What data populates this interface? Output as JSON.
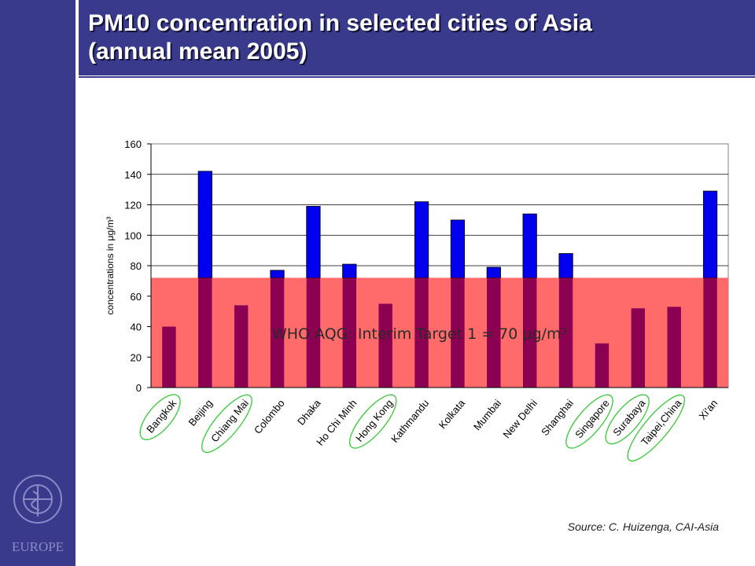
{
  "slide": {
    "title_line1": "PM10 concentration in selected cities of Asia",
    "title_line2": "(annual mean 2005)",
    "source": "Source: C. Huizenga, CAI-Asia",
    "brand": "EUROPE"
  },
  "chart_data": {
    "type": "bar",
    "categories": [
      "Bangkok",
      "Beijing",
      "Chiang Mai",
      "Colombo",
      "Dhaka",
      "Ho Chi Minh",
      "Hong Kong",
      "Kathmandu",
      "Kolkata",
      "Mumbai",
      "New Delhi",
      "Shanghai",
      "Singapore",
      "Surabaya",
      "Taipei,China",
      "Xi'an"
    ],
    "values": [
      40,
      142,
      54,
      77,
      119,
      81,
      55,
      122,
      110,
      79,
      114,
      88,
      29,
      52,
      53,
      129
    ],
    "highlighted": [
      "Bangkok",
      "Chiang Mai",
      "Hong Kong",
      "Singapore",
      "Surabaya",
      "Taipei,China"
    ],
    "ylabel": "concentrations in μg/m³",
    "ylim": [
      0,
      160
    ],
    "yticks": [
      0,
      20,
      40,
      60,
      80,
      100,
      120,
      140,
      160
    ],
    "grid": true,
    "threshold": {
      "value": 70,
      "label": "WHO AQG: Interim Target 1 = 70 μg/m³"
    },
    "colors": {
      "bar": "#0000ee",
      "below_target_bar": "#8b0050",
      "target_band": "#ff6b6b",
      "highlight_ellipse": "#44cc44"
    }
  }
}
